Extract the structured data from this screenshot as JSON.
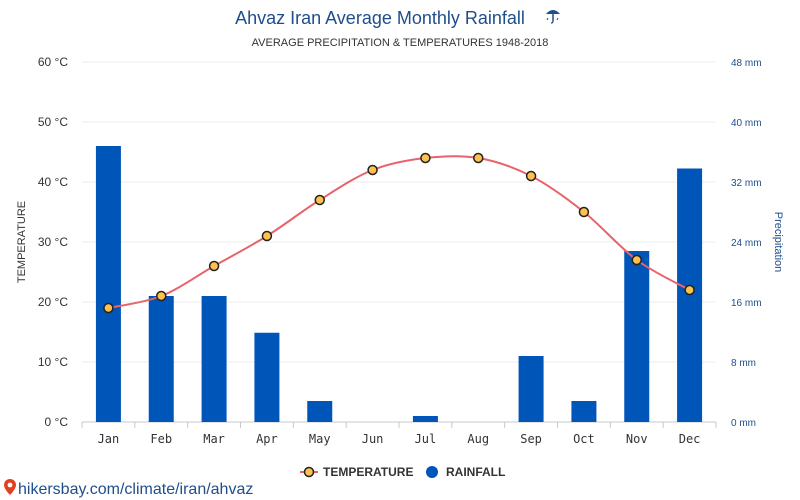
{
  "chart_data": {
    "type": "bar",
    "title": "Ahvaz Iran Average Monthly Rainfall",
    "title_icon": "umbrella-rain-icon",
    "subtitle": "AVERAGE PRECIPITATION & TEMPERATURES 1948-2018",
    "categories": [
      "Jan",
      "Feb",
      "Mar",
      "Apr",
      "May",
      "Jun",
      "Jul",
      "Aug",
      "Sep",
      "Oct",
      "Nov",
      "Dec"
    ],
    "series": [
      {
        "name": "RAINFALL",
        "type": "bar",
        "axis": "right",
        "color": "#0055b8",
        "values": [
          36.8,
          16.8,
          16.8,
          11.9,
          2.8,
          0,
          0.8,
          0,
          8.8,
          2.8,
          22.8,
          33.8
        ]
      },
      {
        "name": "TEMPERATURE",
        "type": "line",
        "axis": "left",
        "color": "#e8636b",
        "values": [
          19,
          21,
          26,
          31,
          37,
          42,
          44,
          44,
          41,
          35,
          27,
          22
        ]
      }
    ],
    "y_left": {
      "label": "TEMPERATURE",
      "range": [
        0,
        60
      ],
      "ticks": [
        0,
        10,
        20,
        30,
        40,
        50,
        60
      ],
      "tick_labels": [
        "0 °C",
        "10 °C",
        "20 °C",
        "30 °C",
        "40 °C",
        "50 °C",
        "60 °C"
      ]
    },
    "y_right": {
      "label": "Precipitation",
      "range": [
        0,
        48
      ],
      "ticks": [
        0,
        8,
        16,
        24,
        32,
        40,
        48
      ],
      "tick_labels": [
        "0 mm",
        "8 mm",
        "16 mm",
        "24 mm",
        "32 mm",
        "40 mm",
        "48 mm"
      ]
    },
    "grid": true,
    "legend": {
      "placement": "bottom-center",
      "entries": [
        "TEMPERATURE",
        "RAINFALL"
      ]
    },
    "marker_fill": "#ffc14d"
  },
  "source": {
    "icon": "location-pin-icon",
    "text": "hikersbay.com/climate/iran/ahvaz"
  }
}
